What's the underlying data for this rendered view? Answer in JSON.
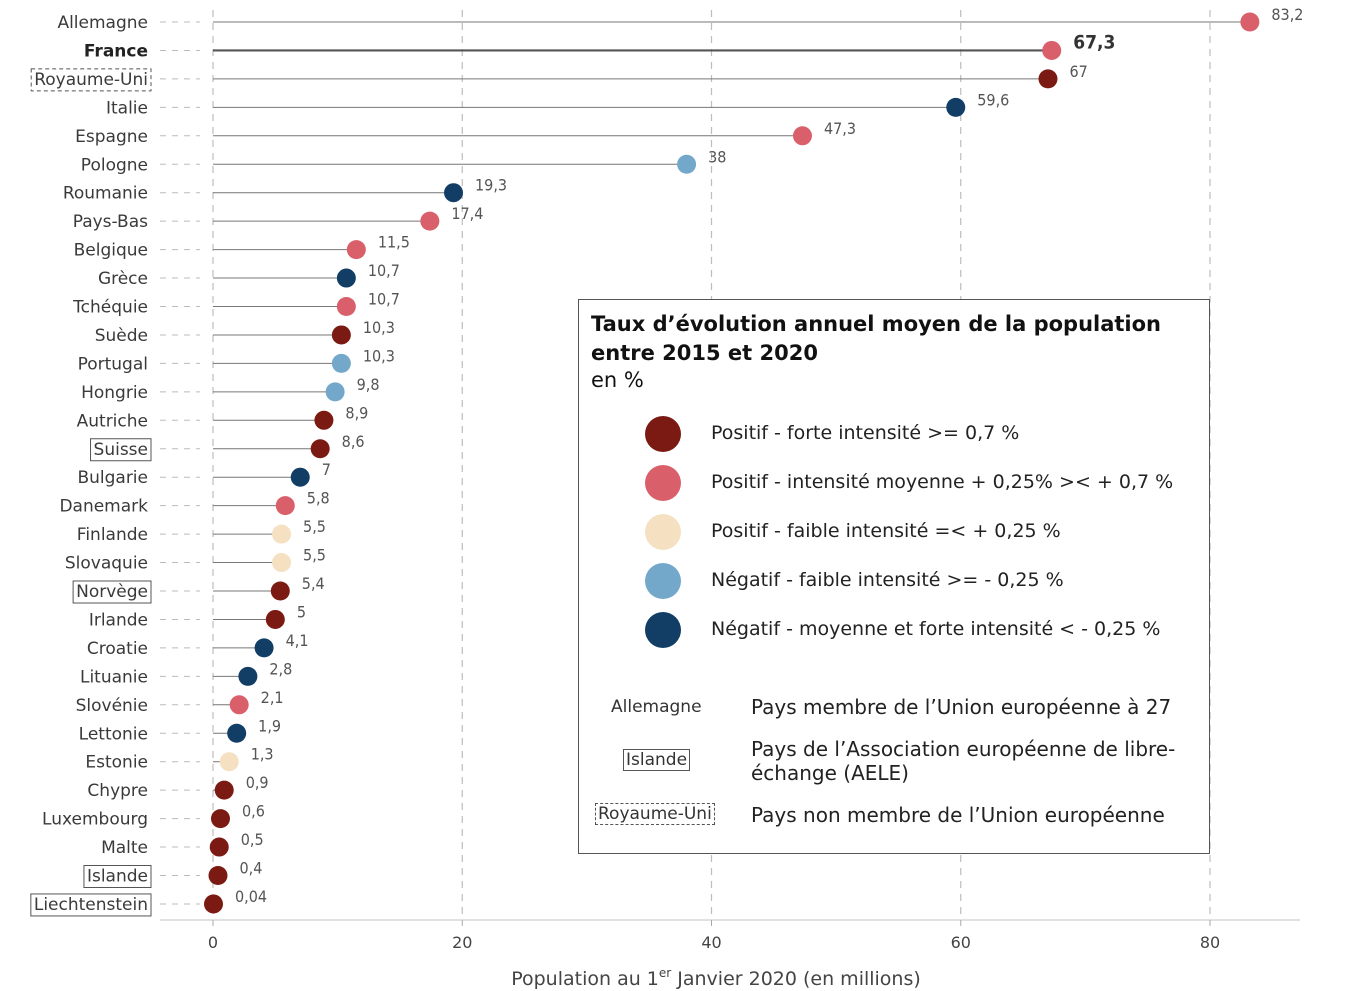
{
  "chart_data": {
    "type": "lollipop",
    "xlabel_pre": "Population au 1",
    "xlabel_sup": "er",
    "xlabel_post": " Janvier 2020 (en millions)",
    "xlim": [
      0,
      80
    ],
    "xticks": [
      0,
      20,
      40,
      60,
      80
    ],
    "grid": "vertical dashed",
    "categories": [
      {
        "name": "Allemagne",
        "value": 83.2,
        "label": "83,2",
        "color_class": "moyenne",
        "status": "ue"
      },
      {
        "name": "France",
        "value": 67.3,
        "label": "67,3",
        "color_class": "moyenne",
        "status": "ue",
        "highlight": true
      },
      {
        "name": "Royaume-Uni",
        "value": 67,
        "label": "67",
        "color_class": "forte",
        "status": "non-ue"
      },
      {
        "name": "Italie",
        "value": 59.6,
        "label": "59,6",
        "color_class": "neg-forte",
        "status": "ue"
      },
      {
        "name": "Espagne",
        "value": 47.3,
        "label": "47,3",
        "color_class": "moyenne",
        "status": "ue"
      },
      {
        "name": "Pologne",
        "value": 38,
        "label": "38",
        "color_class": "neg-faible",
        "status": "ue"
      },
      {
        "name": "Roumanie",
        "value": 19.3,
        "label": "19,3",
        "color_class": "neg-forte",
        "status": "ue"
      },
      {
        "name": "Pays-Bas",
        "value": 17.4,
        "label": "17,4",
        "color_class": "moyenne",
        "status": "ue"
      },
      {
        "name": "Belgique",
        "value": 11.5,
        "label": "11,5",
        "color_class": "moyenne",
        "status": "ue"
      },
      {
        "name": "Grèce",
        "value": 10.7,
        "label": "10,7",
        "color_class": "neg-forte",
        "status": "ue"
      },
      {
        "name": "Tchéquie",
        "value": 10.7,
        "label": "10,7",
        "color_class": "moyenne",
        "status": "ue"
      },
      {
        "name": "Suède",
        "value": 10.3,
        "label": "10,3",
        "color_class": "forte",
        "status": "ue"
      },
      {
        "name": "Portugal",
        "value": 10.3,
        "label": "10,3",
        "color_class": "neg-faible",
        "status": "ue"
      },
      {
        "name": "Hongrie",
        "value": 9.8,
        "label": "9,8",
        "color_class": "neg-faible",
        "status": "ue"
      },
      {
        "name": "Autriche",
        "value": 8.9,
        "label": "8,9",
        "color_class": "forte",
        "status": "ue"
      },
      {
        "name": "Suisse",
        "value": 8.6,
        "label": "8,6",
        "color_class": "forte",
        "status": "aele"
      },
      {
        "name": "Bulgarie",
        "value": 7,
        "label": "7",
        "color_class": "neg-forte",
        "status": "ue"
      },
      {
        "name": "Danemark",
        "value": 5.8,
        "label": "5,8",
        "color_class": "moyenne",
        "status": "ue"
      },
      {
        "name": "Finlande",
        "value": 5.5,
        "label": "5,5",
        "color_class": "faible",
        "status": "ue"
      },
      {
        "name": "Slovaquie",
        "value": 5.5,
        "label": "5,5",
        "color_class": "faible",
        "status": "ue"
      },
      {
        "name": "Norvège",
        "value": 5.4,
        "label": "5,4",
        "color_class": "forte",
        "status": "aele"
      },
      {
        "name": "Irlande",
        "value": 5,
        "label": "5",
        "color_class": "forte",
        "status": "ue"
      },
      {
        "name": "Croatie",
        "value": 4.1,
        "label": "4,1",
        "color_class": "neg-forte",
        "status": "ue"
      },
      {
        "name": "Lituanie",
        "value": 2.8,
        "label": "2,8",
        "color_class": "neg-forte",
        "status": "ue"
      },
      {
        "name": "Slovénie",
        "value": 2.1,
        "label": "2,1",
        "color_class": "moyenne",
        "status": "ue"
      },
      {
        "name": "Lettonie",
        "value": 1.9,
        "label": "1,9",
        "color_class": "neg-forte",
        "status": "ue"
      },
      {
        "name": "Estonie",
        "value": 1.3,
        "label": "1,3",
        "color_class": "faible",
        "status": "ue"
      },
      {
        "name": "Chypre",
        "value": 0.9,
        "label": "0,9",
        "color_class": "forte",
        "status": "ue"
      },
      {
        "name": "Luxembourg",
        "value": 0.6,
        "label": "0,6",
        "color_class": "forte",
        "status": "ue"
      },
      {
        "name": "Malte",
        "value": 0.5,
        "label": "0,5",
        "color_class": "forte",
        "status": "ue"
      },
      {
        "name": "Islande",
        "value": 0.4,
        "label": "0,4",
        "color_class": "forte",
        "status": "aele"
      },
      {
        "name": "Liechtenstein",
        "value": 0.04,
        "label": "0,04",
        "color_class": "forte",
        "status": "aele"
      }
    ],
    "colors": {
      "forte": "#7b1a12",
      "moyenne": "#d9606a",
      "faible": "#f5e1c1",
      "neg-faible": "#74a8cb",
      "neg-forte": "#123e66"
    }
  },
  "legend": {
    "title": "Taux d’évolution annuel moyen de la population entre 2015 et 2020",
    "unit": "en %",
    "items": [
      {
        "key": "forte",
        "label": "Positif - forte intensité >= 0,7 %"
      },
      {
        "key": "moyenne",
        "label": "Positif - intensité moyenne + 0,25% >< + 0,7 %"
      },
      {
        "key": "faible",
        "label": "Positif - faible intensité =< + 0,25 %"
      },
      {
        "key": "neg-faible",
        "label": "Négatif - faible intensité >= - 0,25 %"
      },
      {
        "key": "neg-forte",
        "label": "Négatif - moyenne et forte intensité < - 0,25 %"
      }
    ],
    "status_keys": [
      {
        "sample": "Allemagne",
        "desc": "Pays membre de l’Union européenne à 27"
      },
      {
        "sample": "Islande",
        "desc": "Pays de l’Association européenne de libre-échange (AELE)"
      },
      {
        "sample": "Royaume-Uni",
        "desc": "Pays non membre de l’Union européenne"
      }
    ]
  }
}
